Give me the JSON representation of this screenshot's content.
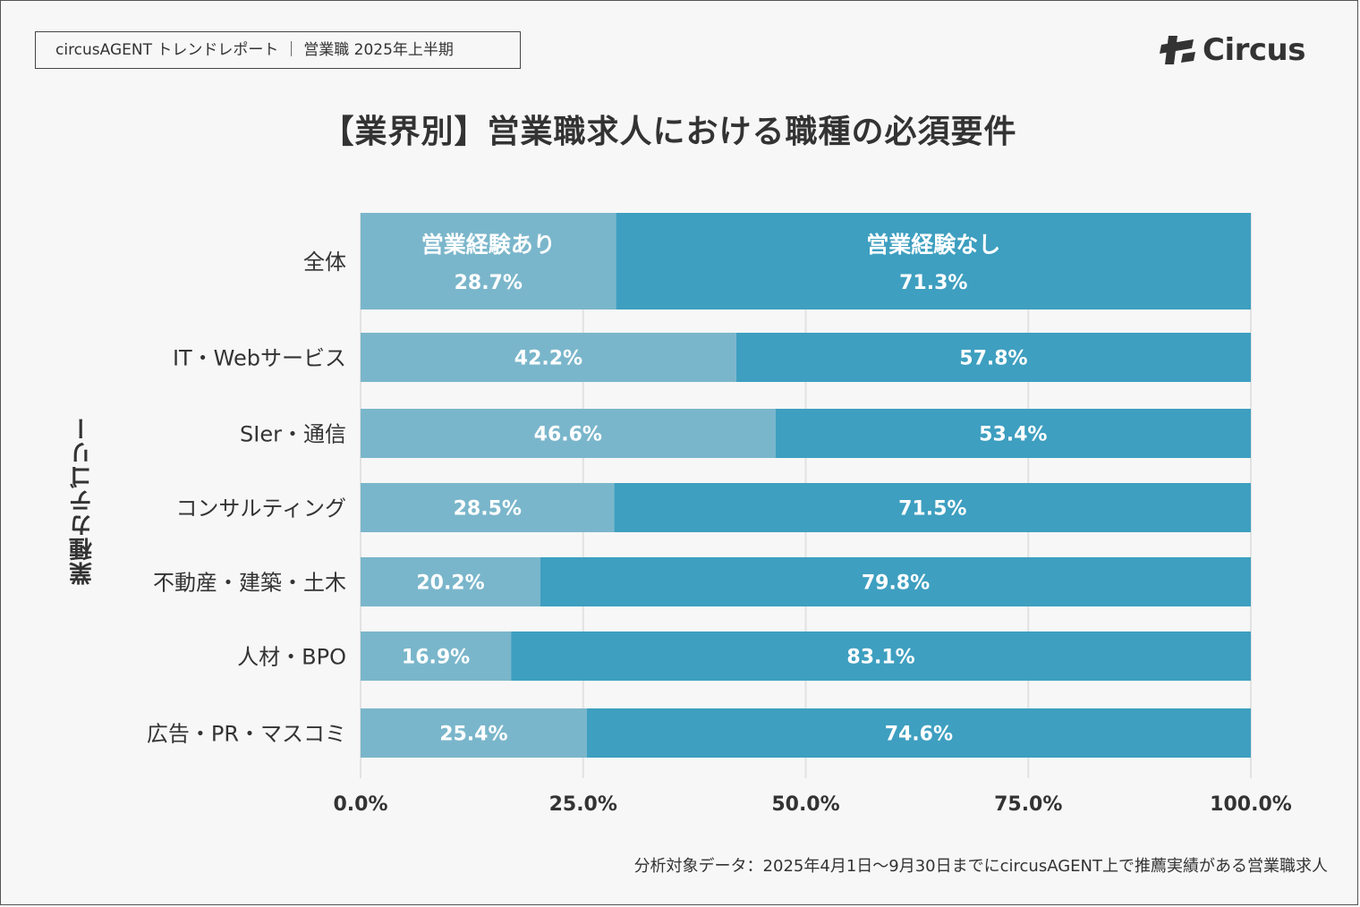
{
  "header": {
    "report_label": "circusAGENT トレンドレポート ｜ 営業職 2025年上半期",
    "logo_text": "Circus"
  },
  "colors": {
    "with_experience": "#7ab6cb",
    "without_experience": "#3e9fc0",
    "grid": "#e2e2e2",
    "text": "#333333"
  },
  "chart_data": {
    "type": "bar",
    "orientation": "horizontal",
    "stacked": true,
    "title": "【業界別】営業職求人における職種の必須要件",
    "ylabel": "業種カテゴリー",
    "xlabel": "",
    "categories": [
      "全体",
      "IT・Webサービス",
      "SIer・通信",
      "コンサルティング",
      "不動産・建築・土木",
      "人材・BPO",
      "広告・PR・マスコミ"
    ],
    "series": [
      {
        "name": "営業経験あり",
        "values": [
          28.7,
          42.2,
          46.6,
          28.5,
          20.2,
          16.9,
          25.4
        ]
      },
      {
        "name": "営業経験なし",
        "values": [
          71.3,
          57.8,
          53.4,
          71.5,
          79.8,
          83.1,
          74.6
        ]
      }
    ],
    "xlim": [
      0,
      100
    ],
    "xticks": [
      0,
      25,
      50,
      75,
      100
    ],
    "xtick_labels": [
      "0.0%",
      "25.0%",
      "50.0%",
      "75.0%",
      "100.0%"
    ],
    "grid": true,
    "legend": "inside-first-bar"
  },
  "footnote": "分析対象データ：2025年4月1日〜9月30日までにcircusAGENT上で推薦実績がある営業職求人"
}
